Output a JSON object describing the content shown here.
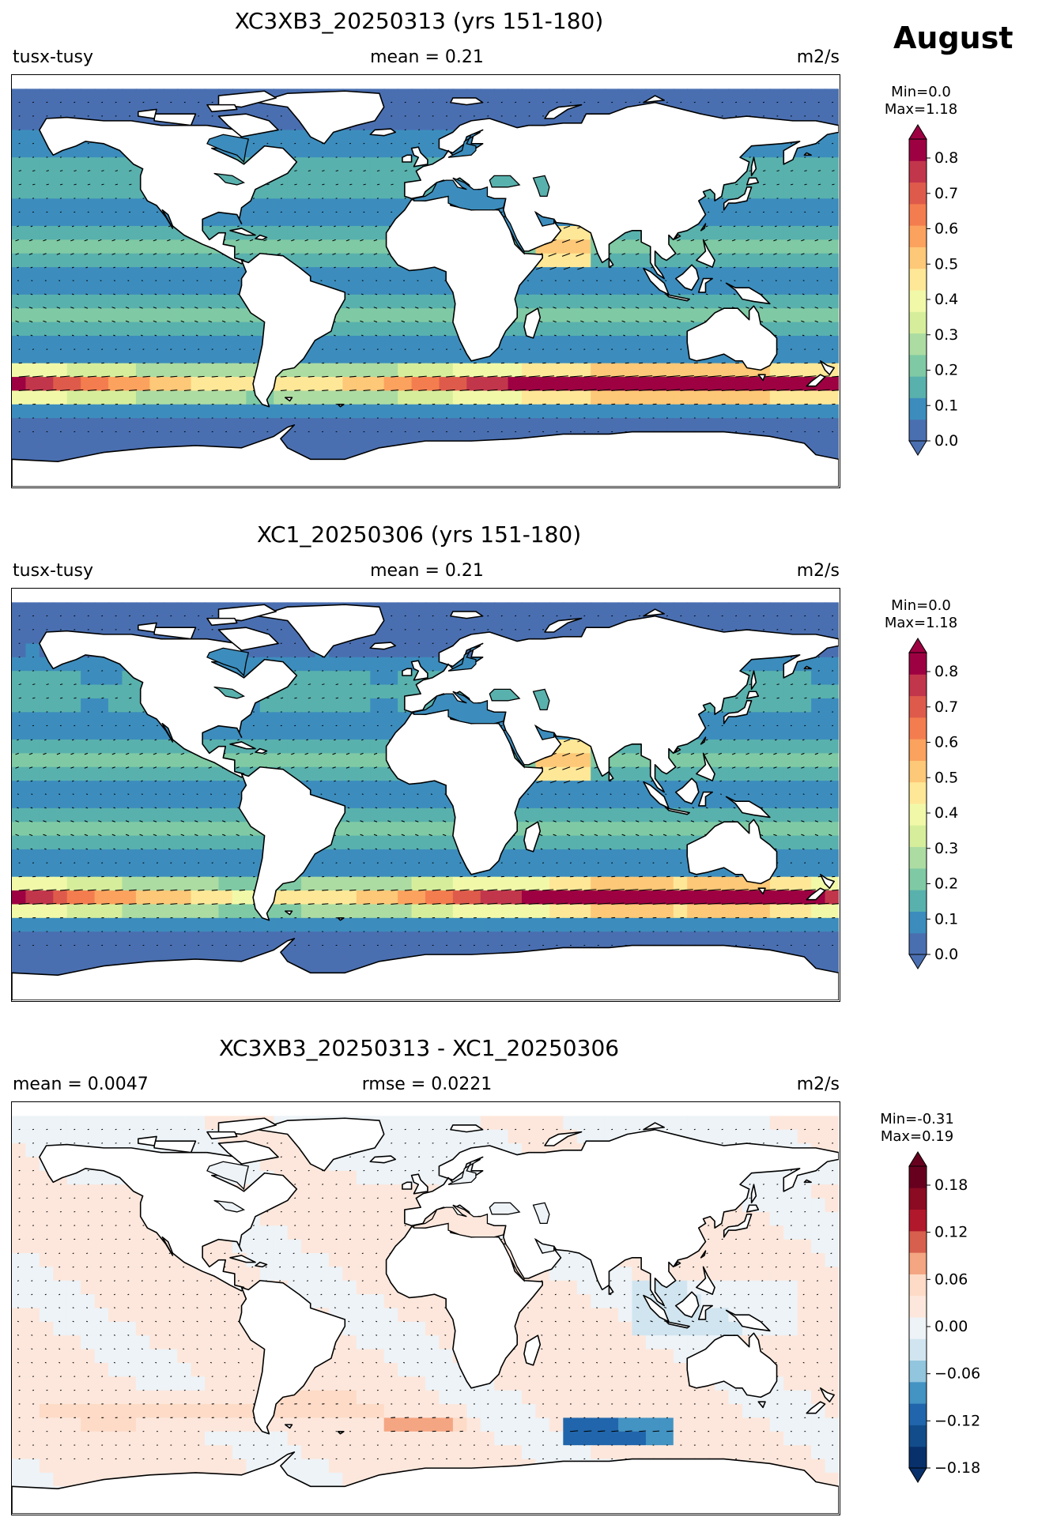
{
  "figure": {
    "month": "August"
  },
  "panels": [
    {
      "title": "XC3XB3_20250313 (yrs 151-180)",
      "left_label": "tusx-tusy",
      "center_label": "mean = 0.21",
      "right_label": "m2/s",
      "min_label": "Min=0.0",
      "max_label": "Max=1.18",
      "colorbar_ticks": [
        "0.8",
        "0.7",
        "0.6",
        "0.5",
        "0.4",
        "0.3",
        "0.2",
        "0.1",
        "0.0"
      ],
      "colormap": "Spectral_r"
    },
    {
      "title": "XC1_20250306 (yrs 151-180)",
      "left_label": "tusx-tusy",
      "center_label": "mean = 0.21",
      "right_label": "m2/s",
      "min_label": "Min=0.0",
      "max_label": "Max=1.18",
      "colorbar_ticks": [
        "0.8",
        "0.7",
        "0.6",
        "0.5",
        "0.4",
        "0.3",
        "0.2",
        "0.1",
        "0.0"
      ],
      "colormap": "Spectral_r"
    },
    {
      "title": "XC3XB3_20250313 - XC1_20250306",
      "left_label": "mean = 0.0047",
      "center_label": "rmse = 0.0221",
      "right_label": "m2/s",
      "min_label": "Min=-0.31",
      "max_label": "Max=0.19",
      "colorbar_ticks": [
        "0.18",
        "0.12",
        "0.06",
        "0.00",
        "−0.06",
        "−0.12",
        "−0.18"
      ],
      "colormap": "RdBu_r"
    }
  ],
  "colors": {
    "spectral": [
      "#4a6fb1",
      "#3c8dbd",
      "#59b1ad",
      "#7fcaa4",
      "#acdca2",
      "#d6ee9b",
      "#f1f9a9",
      "#fee898",
      "#fdc877",
      "#fba25e",
      "#f47d4f",
      "#de5b4b",
      "#c2364c",
      "#9e0142"
    ],
    "rdbu": [
      "#08306b",
      "#134c8a",
      "#2166ac",
      "#4393c3",
      "#92c5de",
      "#d1e5f0",
      "#edf3f7",
      "#fde7dc",
      "#fddbc7",
      "#f4a582",
      "#d6604d",
      "#b2182b",
      "#8b0b22",
      "#67001f"
    ]
  }
}
